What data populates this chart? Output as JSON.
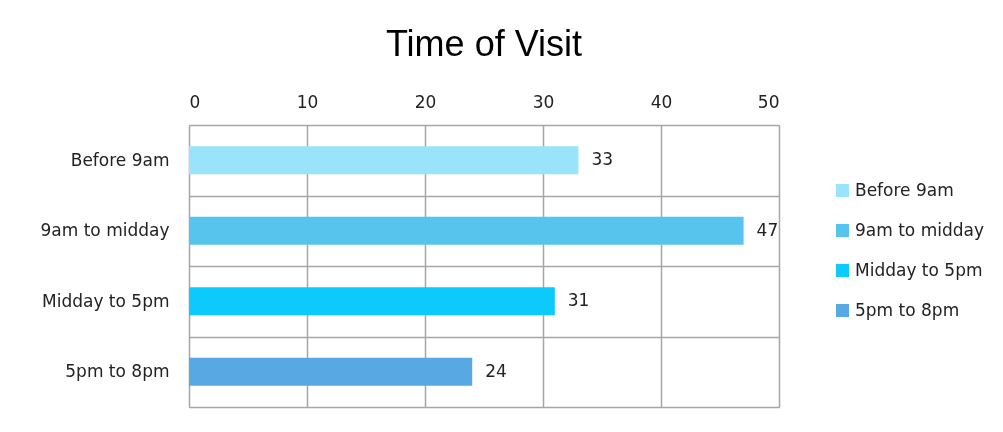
{
  "chart_data": {
    "type": "bar",
    "title": "Time of Visit",
    "orientation": "horizontal",
    "stacked": true,
    "categories": [
      "Before 9am",
      "9am to midday",
      "Midday to 5pm",
      "5pm to 8pm"
    ],
    "series": [
      {
        "name": "Before 9am",
        "color": "#99e3fb",
        "values": [
          33,
          null,
          null,
          null
        ]
      },
      {
        "name": "9am to midday",
        "color": "#56c4ec",
        "values": [
          null,
          47,
          null,
          null
        ]
      },
      {
        "name": "Midday to 5pm",
        "color": "#0ccafc",
        "values": [
          null,
          null,
          31,
          null
        ]
      },
      {
        "name": "5pm to 8pm",
        "color": "#58a8e4",
        "values": [
          null,
          null,
          null,
          24
        ]
      }
    ],
    "xlim": [
      0,
      50
    ],
    "xticks": [
      0,
      10,
      20,
      30,
      40,
      50
    ],
    "grid": true,
    "legend": "right",
    "data_labels": true
  }
}
